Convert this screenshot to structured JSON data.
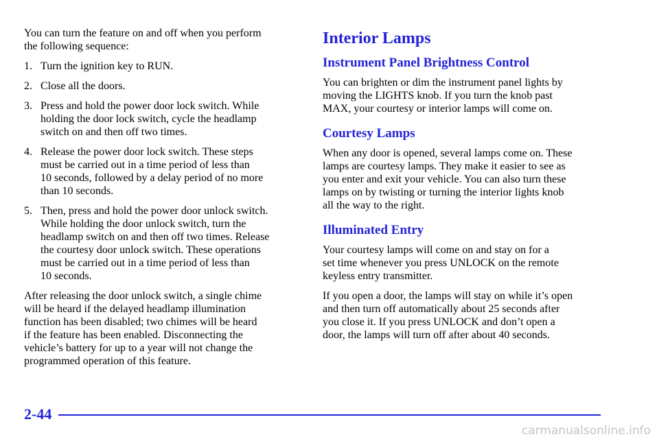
{
  "left": {
    "intro": [
      "You can turn the feature on and off when you perform",
      "the following sequence:"
    ],
    "steps": [
      {
        "number": "1.",
        "lines": [
          "Turn the ignition key to RUN."
        ]
      },
      {
        "number": "2.",
        "lines": [
          "Close all the doors."
        ]
      },
      {
        "number": "3.",
        "lines": [
          "Press and hold the power door lock switch. While",
          "holding the door lock switch, cycle the headlamp",
          "switch on and then off two times."
        ]
      },
      {
        "number": "4.",
        "lines": [
          "Release the power door lock switch. These steps",
          "must be carried out in a time period of less than",
          "10 seconds, followed by a delay period of no more",
          "than 10 seconds."
        ]
      },
      {
        "number": "5.",
        "lines": [
          "Then, press and hold the power door unlock switch.",
          "While holding the door unlock switch, turn the",
          "headlamp switch on and then off two times. Release",
          "the courtesy door unlock switch. These operations",
          "must be carried out in a time period of less than",
          "10 seconds."
        ]
      }
    ],
    "closing": [
      "After releasing the door unlock switch, a single chime",
      "will be heard if the delayed headlamp illumination",
      "function has been disabled; two chimes will be heard",
      "if the feature has been enabled. Disconnecting the",
      "vehicle’s battery for up to a year will not change the",
      "programmed operation of this feature."
    ]
  },
  "right": {
    "title": "Interior Lamps",
    "sections": [
      {
        "heading": "Instrument Panel Brightness Control",
        "paragraphs": [
          [
            "You can brighten or dim the instrument panel lights by",
            "moving the LIGHTS knob. If you turn the knob past",
            "MAX, your courtesy or interior lamps will come on."
          ]
        ]
      },
      {
        "heading": "Courtesy Lamps",
        "paragraphs": [
          [
            "When any door is opened, several lamps come on. These",
            "lamps are courtesy lamps. They make it easier to see as",
            "you enter and exit your vehicle. You can also turn these",
            "lamps on by twisting or turning the interior lights knob",
            "all the way to the right."
          ]
        ]
      },
      {
        "heading": "Illuminated Entry",
        "paragraphs": [
          [
            "Your courtesy lamps will come on and stay on for a",
            "set time whenever you press UNLOCK on the remote",
            "keyless entry transmitter."
          ],
          [
            "If you open a door, the lamps will stay on while it’s open",
            "and then turn off automatically about 25 seconds after",
            "you close it. If you press UNLOCK and don’t open a",
            "door, the lamps will turn off after about 40 seconds."
          ]
        ]
      }
    ]
  },
  "footer": {
    "page_number": "2-44",
    "watermark": "carmanualsonline.info"
  }
}
